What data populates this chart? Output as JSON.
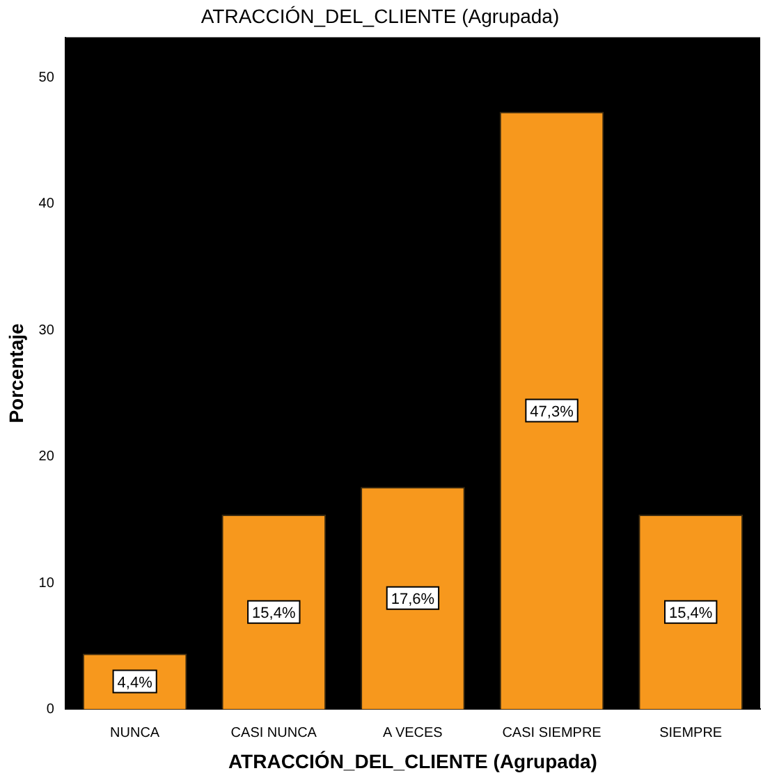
{
  "chart_data": {
    "type": "bar",
    "title": "ATRACCIÓN_DEL_CLIENTE (Agrupada)",
    "xlabel": "ATRACCIÓN_DEL_CLIENTE (Agrupada)",
    "ylabel": "Porcentaje",
    "categories": [
      "NUNCA",
      "CASI NUNCA",
      "A VECES",
      "CASI SIEMPRE",
      "SIEMPRE"
    ],
    "values": [
      4.4,
      15.4,
      17.6,
      47.3,
      15.4
    ],
    "value_labels": [
      "4,4%",
      "15,4%",
      "17,6%",
      "47,3%",
      "15,4%"
    ],
    "color": "#f7981d",
    "ylim": [
      0,
      53.2
    ],
    "yticks": [
      0,
      10,
      20,
      30,
      40,
      50
    ],
    "grid": false,
    "legend": false
  }
}
